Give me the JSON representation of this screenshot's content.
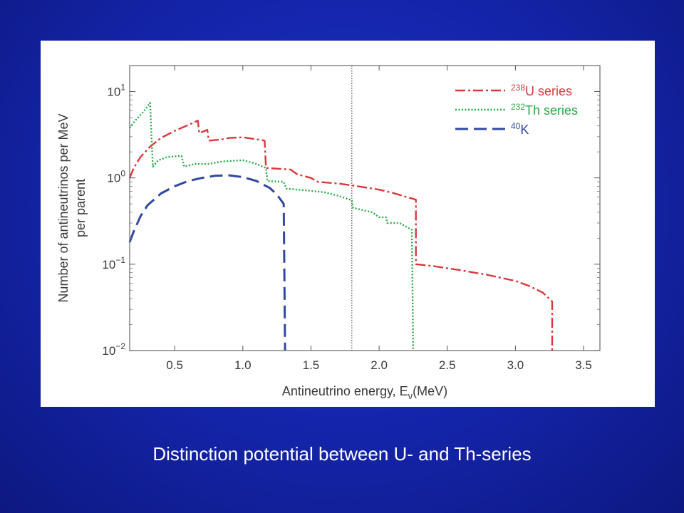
{
  "caption": "Distinction potential between U- and Th-series",
  "chart_data": {
    "type": "line",
    "xlabel": "Antineutrino energy, E",
    "xlabel_subscript": "ν",
    "xlabel_unit": "(MeV)",
    "ylabel_line1": "Number of antineutrinos per MeV",
    "ylabel_line2": "per parent",
    "xlim": [
      0.17,
      3.62
    ],
    "ylim": [
      0.01,
      20
    ],
    "yscale": "log",
    "x_ticks": [
      "0.5",
      "1.0",
      "1.5",
      "2.0",
      "2.5",
      "3.0",
      "3.5"
    ],
    "y_ticks": [
      {
        "base": "10",
        "exp": "1",
        "value": 10
      },
      {
        "base": "10",
        "exp": "0",
        "value": 1
      },
      {
        "base": "10",
        "exp": "−1",
        "value": 0.1
      },
      {
        "base": "10",
        "exp": "−2",
        "value": 0.01
      }
    ],
    "reference_line_x": 1.8,
    "legend_position": "top-right",
    "series": [
      {
        "name": "U series",
        "superscript": "238",
        "color": "#d9373c",
        "dash": "dashdot",
        "points": [
          [
            0.17,
            1.0
          ],
          [
            0.2,
            1.3
          ],
          [
            0.25,
            1.75
          ],
          [
            0.32,
            2.3
          ],
          [
            0.4,
            2.9
          ],
          [
            0.5,
            3.5
          ],
          [
            0.6,
            4.1
          ],
          [
            0.67,
            4.6
          ],
          [
            0.68,
            3.3
          ],
          [
            0.74,
            3.6
          ],
          [
            0.75,
            2.7
          ],
          [
            0.85,
            2.8
          ],
          [
            0.9,
            2.9
          ],
          [
            1.0,
            2.95
          ],
          [
            1.1,
            2.8
          ],
          [
            1.16,
            2.7
          ],
          [
            1.17,
            1.3
          ],
          [
            1.25,
            1.28
          ],
          [
            1.35,
            1.25
          ],
          [
            1.4,
            1.1
          ],
          [
            1.5,
            1.0
          ],
          [
            1.55,
            0.9
          ],
          [
            1.7,
            0.86
          ],
          [
            1.8,
            0.82
          ],
          [
            2.0,
            0.73
          ],
          [
            2.1,
            0.67
          ],
          [
            2.2,
            0.6
          ],
          [
            2.27,
            0.56
          ],
          [
            2.27,
            0.1
          ],
          [
            2.4,
            0.095
          ],
          [
            2.6,
            0.085
          ],
          [
            2.8,
            0.075
          ],
          [
            3.0,
            0.064
          ],
          [
            3.1,
            0.056
          ],
          [
            3.2,
            0.047
          ],
          [
            3.27,
            0.037
          ],
          [
            3.27,
            0.01
          ]
        ]
      },
      {
        "name": "Th series",
        "superscript": "232",
        "color": "#2aa845",
        "dash": "dotted",
        "points": [
          [
            0.17,
            3.8
          ],
          [
            0.22,
            4.8
          ],
          [
            0.27,
            5.8
          ],
          [
            0.32,
            7.4
          ],
          [
            0.33,
            3.0
          ],
          [
            0.34,
            1.35
          ],
          [
            0.38,
            1.6
          ],
          [
            0.45,
            1.75
          ],
          [
            0.55,
            1.8
          ],
          [
            0.57,
            1.35
          ],
          [
            0.65,
            1.45
          ],
          [
            0.75,
            1.45
          ],
          [
            0.85,
            1.55
          ],
          [
            1.0,
            1.6
          ],
          [
            1.1,
            1.45
          ],
          [
            1.17,
            1.3
          ],
          [
            1.18,
            0.92
          ],
          [
            1.3,
            0.9
          ],
          [
            1.32,
            0.75
          ],
          [
            1.45,
            0.72
          ],
          [
            1.6,
            0.68
          ],
          [
            1.7,
            0.62
          ],
          [
            1.8,
            0.55
          ],
          [
            1.81,
            0.45
          ],
          [
            1.95,
            0.4
          ],
          [
            2.0,
            0.35
          ],
          [
            2.05,
            0.35
          ],
          [
            2.06,
            0.3
          ],
          [
            2.15,
            0.3
          ],
          [
            2.24,
            0.25
          ],
          [
            2.25,
            0.01
          ]
        ]
      },
      {
        "name": "K",
        "superscript": "40",
        "color": "#3148a0",
        "dash": "dashed",
        "points": [
          [
            0.17,
            0.18
          ],
          [
            0.2,
            0.24
          ],
          [
            0.25,
            0.36
          ],
          [
            0.3,
            0.48
          ],
          [
            0.4,
            0.66
          ],
          [
            0.5,
            0.8
          ],
          [
            0.6,
            0.92
          ],
          [
            0.7,
            1.0
          ],
          [
            0.8,
            1.06
          ],
          [
            0.9,
            1.07
          ],
          [
            1.0,
            1.02
          ],
          [
            1.1,
            0.92
          ],
          [
            1.2,
            0.76
          ],
          [
            1.25,
            0.64
          ],
          [
            1.3,
            0.5
          ],
          [
            1.31,
            0.01
          ]
        ]
      }
    ]
  }
}
